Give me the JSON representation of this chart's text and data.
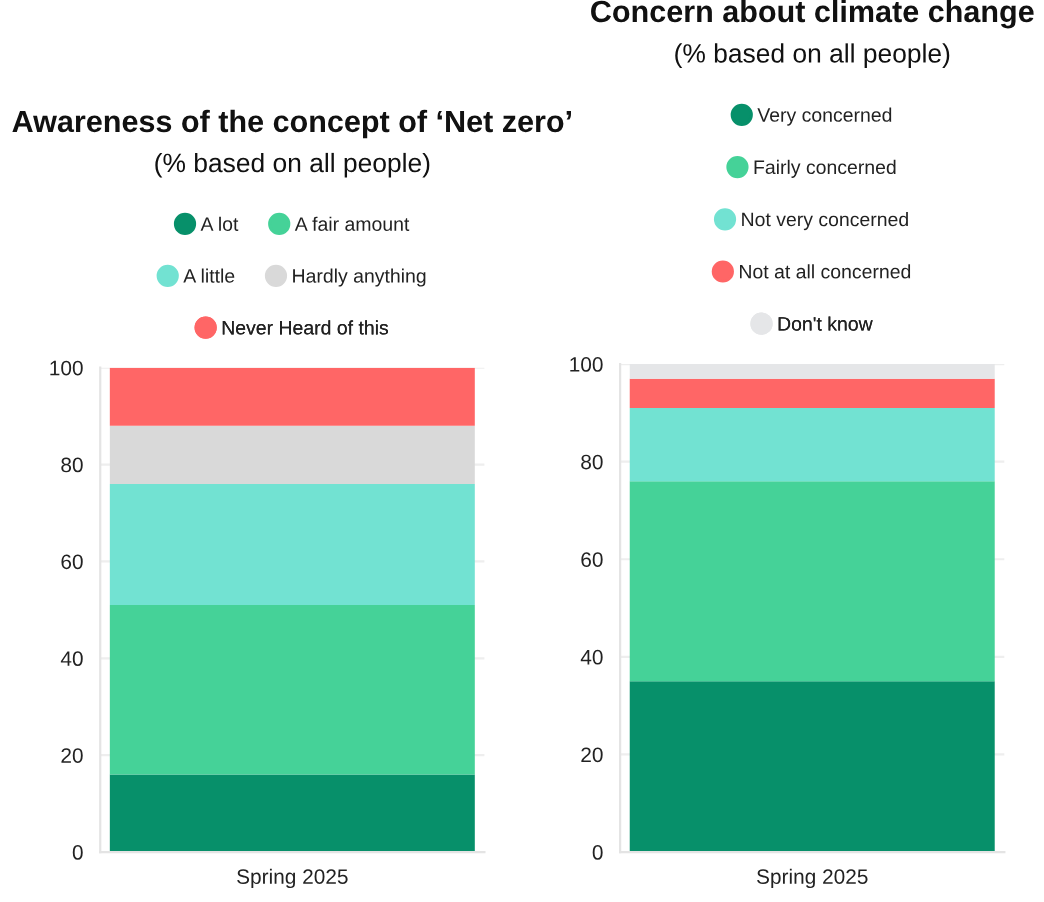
{
  "chart_data": [
    {
      "type": "bar",
      "stacked": true,
      "title": "Awareness of the concept of ‘Net zero’",
      "subtitle": "(% based on all people)",
      "categories": [
        "Spring 2025"
      ],
      "series": [
        {
          "name": "A lot",
          "color": "#07906a",
          "values": [
            16
          ]
        },
        {
          "name": "A fair amount",
          "color": "#45d298",
          "values": [
            35
          ]
        },
        {
          "name": "A little",
          "color": "#72e2d2",
          "values": [
            25
          ]
        },
        {
          "name": "Hardly anything",
          "color": "#d9d9d9",
          "values": [
            12
          ]
        },
        {
          "name": "Never Heard of this",
          "color": "#ff6666",
          "values": [
            12
          ]
        }
      ],
      "ylim": [
        0,
        100
      ],
      "yticks": [
        0,
        20,
        40,
        60,
        80,
        100
      ],
      "grid": "y",
      "legend": "top"
    },
    {
      "type": "bar",
      "stacked": true,
      "title": "Concern about climate change",
      "subtitle": "(% based on all people)",
      "categories": [
        "Spring 2025"
      ],
      "series": [
        {
          "name": "Very concerned",
          "color": "#07906a",
          "values": [
            35
          ]
        },
        {
          "name": "Fairly concerned",
          "color": "#45d298",
          "values": [
            41
          ]
        },
        {
          "name": "Not very concerned",
          "color": "#72e2d2",
          "values": [
            15
          ]
        },
        {
          "name": "Not at all concerned",
          "color": "#ff6666",
          "values": [
            6
          ]
        },
        {
          "name": "Don't know",
          "color": "#e5e6e8",
          "values": [
            3
          ]
        }
      ],
      "ylim": [
        0,
        100
      ],
      "yticks": [
        0,
        20,
        40,
        60,
        80,
        100
      ],
      "grid": "y",
      "legend": "top"
    }
  ]
}
